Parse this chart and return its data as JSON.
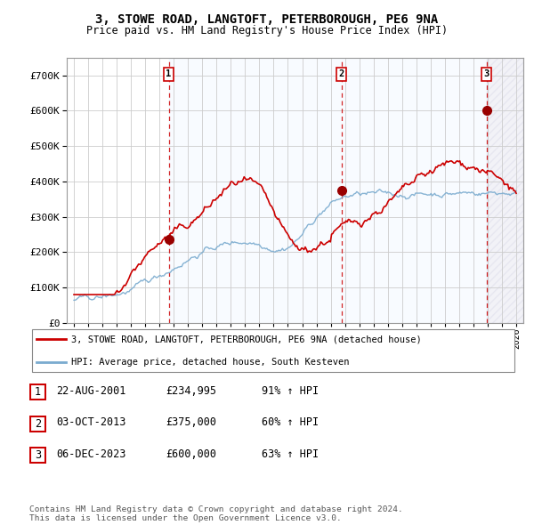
{
  "title": "3, STOWE ROAD, LANGTOFT, PETERBOROUGH, PE6 9NA",
  "subtitle": "Price paid vs. HM Land Registry's House Price Index (HPI)",
  "xlim": [
    1994.5,
    2026.5
  ],
  "ylim": [
    0,
    750000
  ],
  "yticks": [
    0,
    100000,
    200000,
    300000,
    400000,
    500000,
    600000,
    700000
  ],
  "sale_dates": [
    2001.646,
    2013.753,
    2023.922
  ],
  "sale_prices": [
    234995,
    375000,
    600000
  ],
  "sale_labels": [
    "1",
    "2",
    "3"
  ],
  "red_line_color": "#cc0000",
  "blue_line_color": "#7aabcf",
  "dashed_line_color": "#cc0000",
  "shade_color": "#ddeeff",
  "legend_entries": [
    "3, STOWE ROAD, LANGTOFT, PETERBOROUGH, PE6 9NA (detached house)",
    "HPI: Average price, detached house, South Kesteven"
  ],
  "table_rows": [
    [
      "1",
      "22-AUG-2001",
      "£234,995",
      "91% ↑ HPI"
    ],
    [
      "2",
      "03-OCT-2013",
      "£375,000",
      "60% ↑ HPI"
    ],
    [
      "3",
      "06-DEC-2023",
      "£600,000",
      "63% ↑ HPI"
    ]
  ],
  "footer": "Contains HM Land Registry data © Crown copyright and database right 2024.\nThis data is licensed under the Open Government Licence v3.0.",
  "background_color": "#ffffff",
  "grid_color": "#cccccc"
}
